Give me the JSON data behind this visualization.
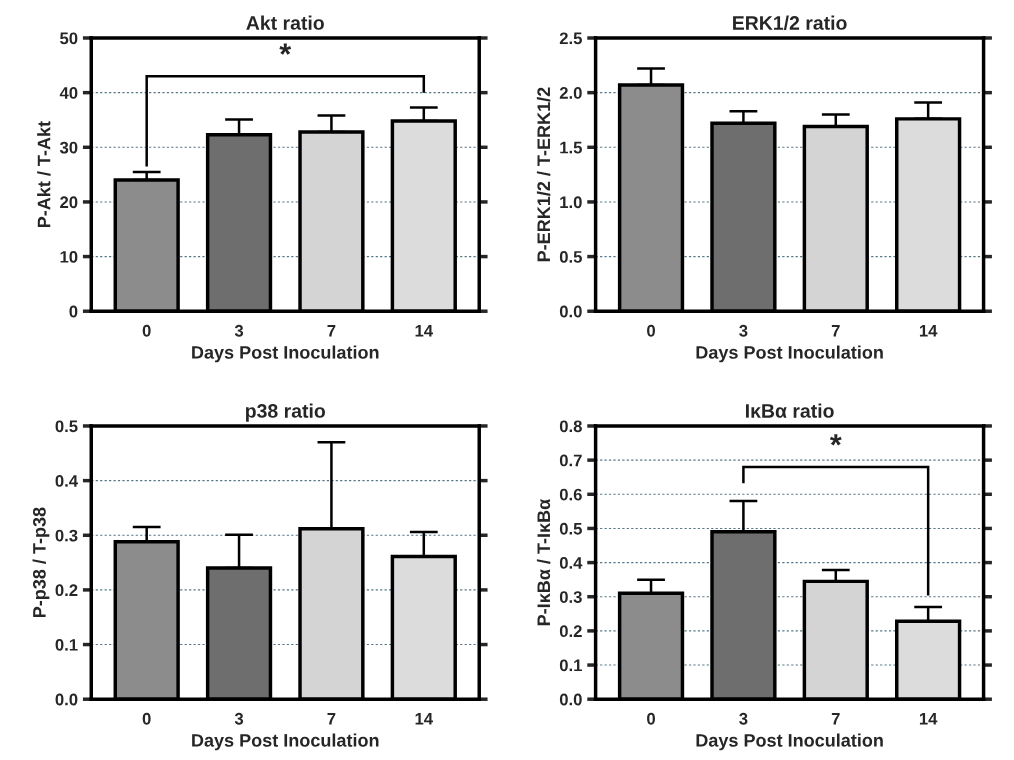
{
  "chart_data": [
    {
      "type": "bar",
      "title": "Akt ratio",
      "xlabel": "Days Post Inoculation",
      "ylabel": "P-Akt / T-Akt",
      "categories": [
        "0",
        "3",
        "7",
        "14"
      ],
      "values": [
        24,
        32.3,
        32.8,
        34.8
      ],
      "errors": [
        [
          24,
          25.5
        ],
        [
          32.3,
          35.1
        ],
        [
          32.8,
          35.8
        ],
        [
          34.8,
          37.3
        ]
      ],
      "colors": [
        "#8c8c8c",
        "#6e6e6e",
        "#d4d4d4",
        "#dcdcdc"
      ],
      "ylim": [
        0,
        50
      ],
      "yticks": [
        0,
        10,
        20,
        30,
        40,
        50
      ],
      "grid": "y",
      "annotations": [
        "*"
      ]
    },
    {
      "type": "bar",
      "title": "ERK1/2 ratio",
      "xlabel": "Days Post Inoculation",
      "ylabel": "P-ERK1/2 / T-ERK1/2",
      "categories": [
        "0",
        "3",
        "7",
        "14"
      ],
      "values": [
        2.07,
        1.72,
        1.69,
        1.76
      ],
      "errors": [
        [
          2.07,
          2.22
        ],
        [
          1.72,
          1.83
        ],
        [
          1.69,
          1.8
        ],
        [
          1.76,
          1.91
        ]
      ],
      "colors": [
        "#8c8c8c",
        "#6e6e6e",
        "#d4d4d4",
        "#dcdcdc"
      ],
      "ylim": [
        0,
        2.5
      ],
      "yticks": [
        {
          "value": 0,
          "label": "0.0"
        },
        0.5,
        {
          "value": 1,
          "label": "1.0"
        },
        1.5,
        {
          "value": 2,
          "label": "2.0"
        },
        2.5
      ],
      "grid": "y"
    },
    {
      "type": "bar",
      "title": "p38 ratio",
      "xlabel": "Days Post Inoculation",
      "ylabel": "P-p38 / T-p38",
      "categories": [
        "0",
        "3",
        "7",
        "14"
      ],
      "values": [
        0.288,
        0.24,
        0.312,
        0.261
      ],
      "errors": [
        [
          0.288,
          0.315
        ],
        [
          0.24,
          0.301
        ],
        [
          0.312,
          0.47
        ],
        [
          0.261,
          0.306
        ]
      ],
      "colors": [
        "#8c8c8c",
        "#6e6e6e",
        "#d4d4d4",
        "#dcdcdc"
      ],
      "ylim": [
        0,
        0.5
      ],
      "yticks": [
        {
          "value": 0,
          "label": "0.0"
        },
        0.1,
        0.2,
        0.3,
        0.4,
        0.5
      ],
      "grid": "y"
    },
    {
      "type": "bar",
      "title": "IκBα ratio",
      "xlabel": "Days Post Inoculation",
      "ylabel": "P-IκBα / T-IκBα",
      "categories": [
        "0",
        "3",
        "7",
        "14"
      ],
      "values": [
        0.31,
        0.49,
        0.345,
        0.228
      ],
      "errors": [
        [
          0.31,
          0.35
        ],
        [
          0.49,
          0.58
        ],
        [
          0.345,
          0.378
        ],
        [
          0.228,
          0.27
        ]
      ],
      "colors": [
        "#8c8c8c",
        "#6e6e6e",
        "#d4d4d4",
        "#dcdcdc"
      ],
      "ylim": [
        0,
        0.8
      ],
      "yticks": [
        {
          "value": 0,
          "label": "0.0"
        },
        0.1,
        0.2,
        0.3,
        0.4,
        0.5,
        0.6,
        0.7,
        0.8
      ],
      "grid": "y",
      "annotations": [
        "*"
      ]
    }
  ]
}
